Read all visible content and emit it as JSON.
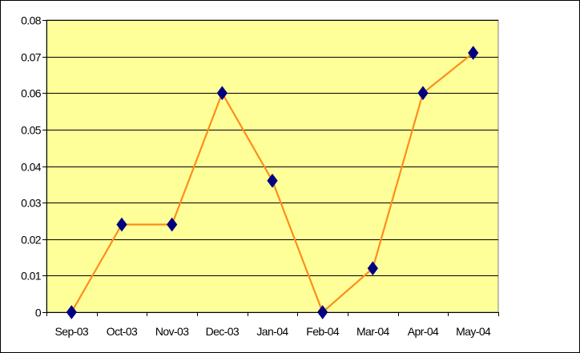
{
  "chart_data": {
    "type": "line",
    "categories": [
      "Sep-03",
      "Oct-03",
      "Nov-03",
      "Dec-03",
      "Jan-04",
      "Feb-04",
      "Mar-04",
      "Apr-04",
      "May-04"
    ],
    "series": [
      {
        "values": [
          0,
          0.024,
          0.024,
          0.06,
          0.036,
          0,
          0.012,
          0.06,
          0.071
        ]
      }
    ],
    "y_ticks": [
      "0",
      "0.01",
      "0.02",
      "0.03",
      "0.04",
      "0.05",
      "0.06",
      "0.07",
      "0.08"
    ],
    "ylim": [
      0,
      0.08
    ],
    "grid": true,
    "legend": "none",
    "colors": {
      "plot_background": "#ffff99",
      "line": "#ff8c1a",
      "marker": "#000080",
      "gridline": "#000000"
    }
  }
}
